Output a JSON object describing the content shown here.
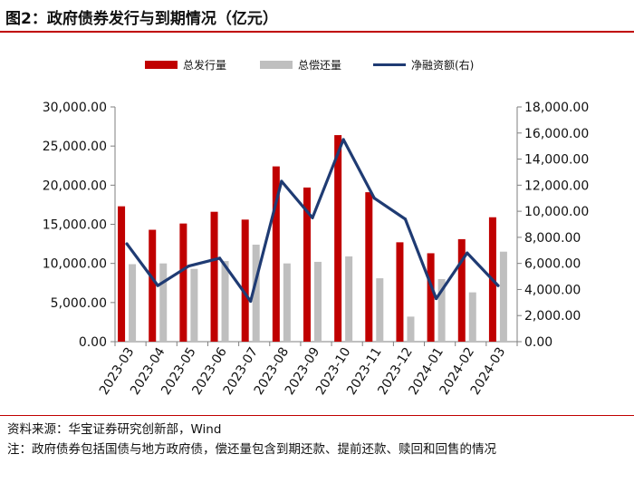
{
  "figure": {
    "title": "图2：政府债券发行与到期情况（亿元）",
    "source": "资料来源：华宝证券研究创新部，Wind",
    "note": "注：政府债券包括国债与地方政府债，偿还量包含到期还款、提前还款、赎回和回售的情况"
  },
  "colors": {
    "issuance": "#c00000",
    "repayment": "#bfbfbf",
    "net": "#1f3b73",
    "rule": "#c00000"
  },
  "chart_data": {
    "type": "bar",
    "categories": [
      "2023-03",
      "2023-04",
      "2023-05",
      "2023-06",
      "2023-07",
      "2023-08",
      "2023-09",
      "2023-10",
      "2023-11",
      "2023-12",
      "2024-01",
      "2024-02",
      "2024-03"
    ],
    "series": [
      {
        "name": "总发行量",
        "type": "bar",
        "axis": "left",
        "values": [
          17300,
          14300,
          15100,
          16600,
          15600,
          22400,
          19700,
          26400,
          19100,
          12700,
          11300,
          13100,
          15900
        ]
      },
      {
        "name": "总偿还量",
        "type": "bar",
        "axis": "left",
        "values": [
          9900,
          10000,
          9300,
          10300,
          12400,
          10000,
          10200,
          10900,
          8100,
          3200,
          8000,
          6300,
          11500
        ]
      },
      {
        "name": "净融资额(右)",
        "type": "line",
        "axis": "right",
        "values": [
          7500,
          4300,
          5800,
          6400,
          3100,
          12300,
          9500,
          15500,
          11000,
          9400,
          3300,
          6800,
          4300
        ]
      }
    ],
    "y_left": {
      "min": 0,
      "max": 30000,
      "step": 5000,
      "tick_labels": [
        "0.00",
        "5,000.00",
        "10,000.00",
        "15,000.00",
        "20,000.00",
        "25,000.00",
        "30,000.00"
      ]
    },
    "y_right": {
      "min": 0,
      "max": 18000,
      "step": 2000,
      "tick_labels": [
        "0.00",
        "2,000.00",
        "4,000.00",
        "6,000.00",
        "8,000.00",
        "10,000.00",
        "12,000.00",
        "14,000.00",
        "16,000.00",
        "18,000.00"
      ]
    },
    "grid": false,
    "legend_position": "top"
  }
}
